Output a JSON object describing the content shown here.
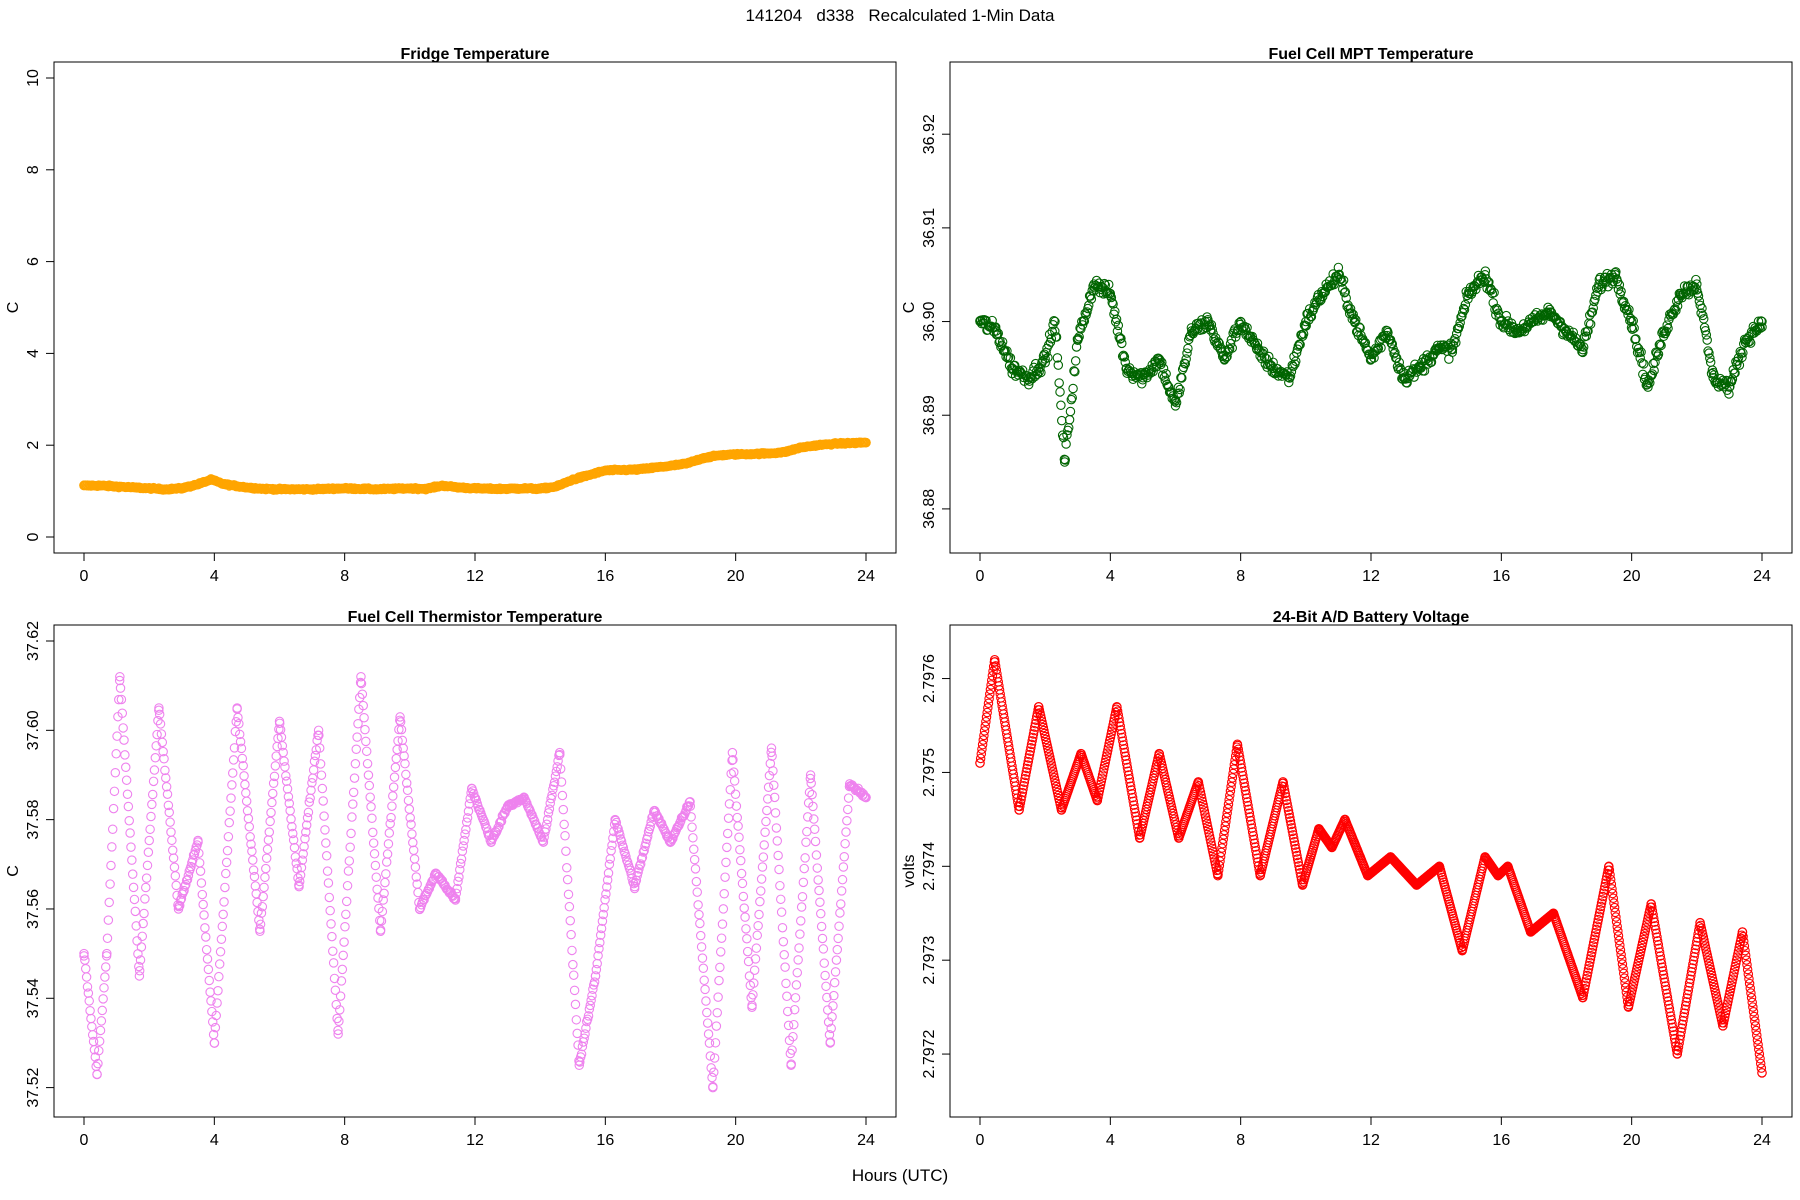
{
  "page": {
    "title": "141204   d338   Recalculated 1-Min Data",
    "x_axis_title": "Hours (UTC)"
  },
  "chart_data": [
    {
      "id": "fridge",
      "type": "scatter",
      "title": "Fridge Temperature",
      "xlabel": "Hours (UTC)",
      "ylabel": "C",
      "color": "#FFA500",
      "xlim": [
        0,
        24
      ],
      "ylim": [
        0,
        10
      ],
      "xticks": [
        "0",
        "4",
        "8",
        "12",
        "16",
        "20",
        "24"
      ],
      "yticks": [
        "0",
        "2",
        "4",
        "6",
        "8",
        "10"
      ],
      "series": [
        {
          "name": "Fridge Temperature",
          "x": [
            0,
            0.5,
            1,
            1.5,
            2,
            2.5,
            3,
            3.5,
            3.9,
            4.3,
            5,
            5.5,
            6,
            7,
            8,
            9,
            10,
            10.5,
            11,
            11.5,
            12,
            12.5,
            13,
            13.5,
            14,
            14.5,
            15,
            15.5,
            16,
            17,
            18,
            18.5,
            19,
            19.5,
            20,
            21,
            21.5,
            22,
            22.5,
            23,
            24
          ],
          "y": [
            1.12,
            1.12,
            1.1,
            1.08,
            1.06,
            1.04,
            1.06,
            1.15,
            1.25,
            1.15,
            1.08,
            1.05,
            1.04,
            1.04,
            1.06,
            1.04,
            1.06,
            1.05,
            1.12,
            1.08,
            1.06,
            1.05,
            1.05,
            1.06,
            1.05,
            1.1,
            1.25,
            1.35,
            1.45,
            1.47,
            1.55,
            1.6,
            1.72,
            1.78,
            1.8,
            1.82,
            1.85,
            1.95,
            2.0,
            2.03,
            2.06
          ]
        }
      ]
    },
    {
      "id": "mpt",
      "type": "scatter",
      "title": "Fuel Cell MPT Temperature",
      "xlabel": "Hours (UTC)",
      "ylabel": "C",
      "color": "#006400",
      "xlim": [
        0,
        24
      ],
      "ylim": [
        36.877,
        36.926
      ],
      "xticks": [
        "0",
        "4",
        "8",
        "12",
        "16",
        "20",
        "24"
      ],
      "yticks": [
        "36.88",
        "36.89",
        "36.90",
        "36.91",
        "36.92"
      ],
      "series": [
        {
          "name": "Fuel Cell MPT Temperature",
          "x": [
            0,
            0.5,
            1,
            1.5,
            2,
            2.3,
            2.6,
            3,
            3.5,
            4,
            4.5,
            5,
            5.5,
            6,
            6.5,
            7,
            7.5,
            8,
            8.5,
            9,
            9.5,
            10,
            10.5,
            11,
            11.5,
            12,
            12.5,
            13,
            13.5,
            14,
            14.5,
            15,
            15.5,
            16,
            16.5,
            17,
            17.5,
            18,
            18.5,
            19,
            19.5,
            20,
            20.5,
            21,
            21.5,
            22,
            22.5,
            23,
            23.5,
            24
          ],
          "y": [
            36.9,
            36.899,
            36.895,
            36.894,
            36.896,
            36.9,
            36.885,
            36.898,
            36.904,
            36.903,
            36.895,
            36.894,
            36.896,
            36.891,
            36.899,
            36.9,
            36.896,
            36.9,
            36.897,
            36.895,
            36.894,
            36.9,
            36.903,
            36.905,
            36.9,
            36.896,
            36.899,
            36.894,
            36.895,
            36.897,
            36.897,
            36.903,
            36.905,
            36.9,
            36.899,
            36.9,
            36.901,
            36.899,
            36.897,
            36.904,
            36.905,
            36.9,
            36.893,
            36.899,
            36.903,
            36.904,
            36.894,
            36.893,
            36.898,
            36.9
          ]
        }
      ]
    },
    {
      "id": "thermistor",
      "type": "scatter",
      "title": "Fuel Cell Thermistor Temperature",
      "xlabel": "Hours (UTC)",
      "ylabel": "C",
      "color": "#EE82EE",
      "xlim": [
        0,
        24
      ],
      "ylim": [
        37.517,
        37.62
      ],
      "xticks": [
        "0",
        "4",
        "8",
        "12",
        "16",
        "20",
        "24"
      ],
      "yticks": [
        "37.52",
        "37.54",
        "37.56",
        "37.58",
        "37.60",
        "37.62"
      ],
      "series": [
        {
          "name": "Fuel Cell Thermistor Temperature",
          "x": [
            0,
            0.4,
            0.7,
            1.1,
            1.7,
            2.3,
            2.9,
            3.5,
            4.0,
            4.7,
            5.4,
            6.0,
            6.6,
            7.2,
            7.8,
            8.5,
            9.1,
            9.7,
            10.3,
            10.8,
            11.4,
            11.9,
            12.5,
            13.0,
            13.5,
            14.1,
            14.6,
            15.2,
            15.7,
            16.3,
            16.9,
            17.5,
            18.0,
            18.6,
            19.3,
            19.9,
            20.5,
            21.1,
            21.7,
            22.3,
            22.9,
            23.5,
            24
          ],
          "y": [
            37.55,
            37.523,
            37.55,
            37.612,
            37.545,
            37.605,
            37.56,
            37.575,
            37.53,
            37.605,
            37.555,
            37.602,
            37.565,
            37.6,
            37.532,
            37.612,
            37.555,
            37.603,
            37.56,
            37.568,
            37.562,
            37.587,
            37.575,
            37.583,
            37.585,
            37.575,
            37.595,
            37.525,
            37.545,
            37.58,
            37.565,
            37.582,
            37.575,
            37.584,
            37.52,
            37.595,
            37.538,
            37.596,
            37.525,
            37.59,
            37.53,
            37.588,
            37.585
          ]
        }
      ]
    },
    {
      "id": "battery",
      "type": "scatter",
      "title": "24-Bit A/D Battery Voltage",
      "xlabel": "Hours (UTC)",
      "ylabel": "volts",
      "color": "#FF0000",
      "xlim": [
        0,
        24
      ],
      "ylim": [
        2.79715,
        2.79764
      ],
      "xticks": [
        "0",
        "4",
        "8",
        "12",
        "16",
        "20",
        "24"
      ],
      "yticks": [
        "2.7972",
        "2.7973",
        "2.7974",
        "2.7975",
        "2.7976"
      ],
      "series": [
        {
          "name": "24-Bit A/D Battery Voltage",
          "x": [
            0,
            0.45,
            1.2,
            1.8,
            2.5,
            3.1,
            3.6,
            4.2,
            4.9,
            5.5,
            6.1,
            6.7,
            7.3,
            7.9,
            8.6,
            9.3,
            9.9,
            10.4,
            10.8,
            11.2,
            11.9,
            12.6,
            13.4,
            14.1,
            14.8,
            15.5,
            15.9,
            16.2,
            16.9,
            17.6,
            18.5,
            19.3,
            19.9,
            20.6,
            21.4,
            22.1,
            22.8,
            23.4,
            24
          ],
          "y": [
            2.79751,
            2.79762,
            2.79746,
            2.79757,
            2.79746,
            2.79752,
            2.79747,
            2.79757,
            2.79743,
            2.79752,
            2.79743,
            2.79749,
            2.79739,
            2.79753,
            2.79739,
            2.79749,
            2.79738,
            2.79744,
            2.79742,
            2.79745,
            2.79739,
            2.79741,
            2.79738,
            2.7974,
            2.79731,
            2.79741,
            2.79739,
            2.7974,
            2.79733,
            2.79735,
            2.79726,
            2.7974,
            2.79725,
            2.79736,
            2.7972,
            2.79734,
            2.79723,
            2.79733,
            2.79718
          ]
        }
      ]
    }
  ]
}
